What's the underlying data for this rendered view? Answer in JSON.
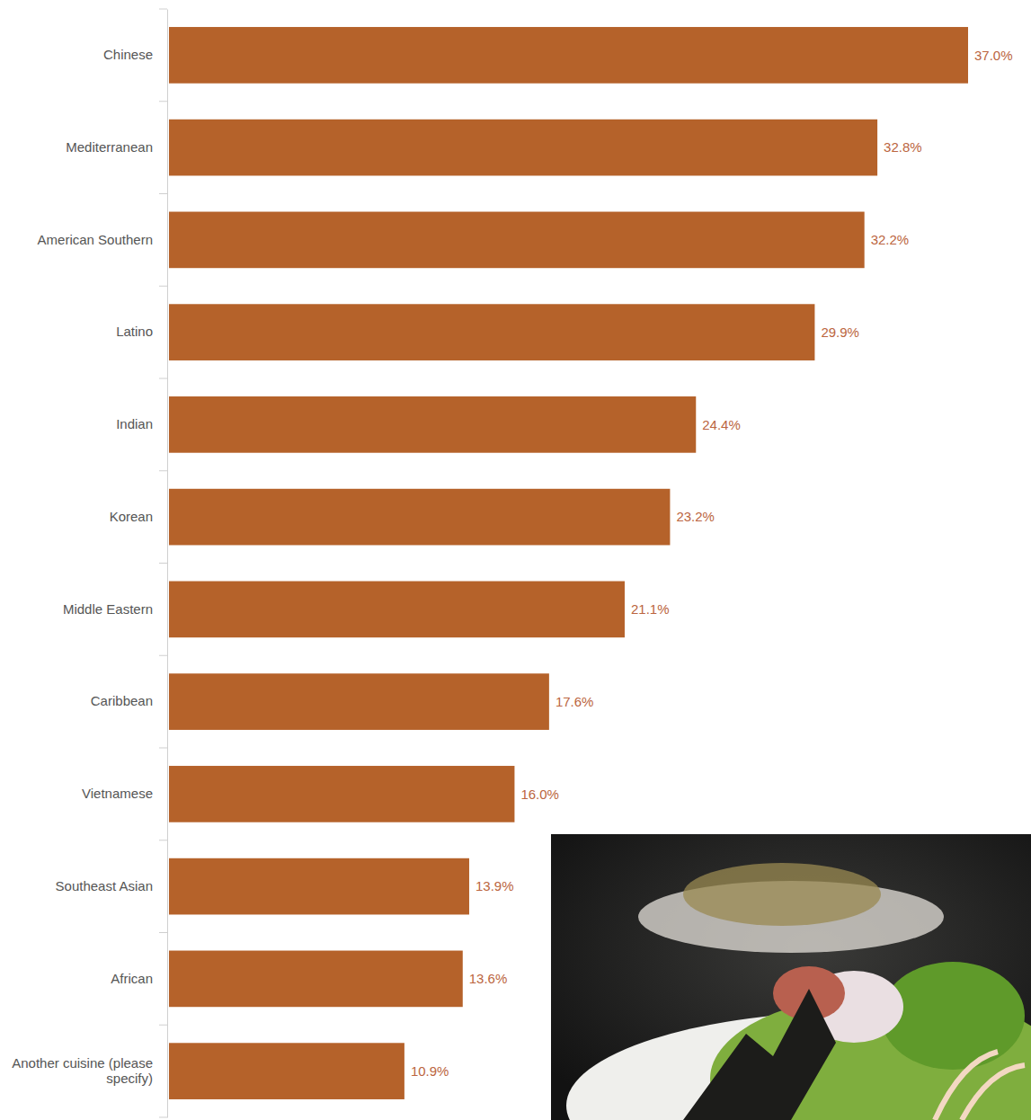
{
  "chart_data": {
    "type": "bar",
    "orientation": "horizontal",
    "categories": [
      "Chinese",
      "Mediterranean",
      "American Southern",
      "Latino",
      "Indian",
      "Korean",
      "Middle Eastern",
      "Caribbean",
      "Vietnamese",
      "Southeast Asian",
      "African",
      "Another cuisine (please specify)"
    ],
    "values": [
      37.0,
      32.8,
      32.2,
      29.9,
      24.4,
      23.2,
      21.1,
      17.6,
      16.0,
      13.9,
      13.6,
      10.9
    ],
    "value_labels": [
      "37.0%",
      "32.8%",
      "32.2%",
      "29.9%",
      "24.4%",
      "23.2%",
      "21.1%",
      "17.6%",
      "16.0%",
      "13.9%",
      "13.6%",
      "10.9%"
    ],
    "color": "#b5622a",
    "xlim": [
      0,
      37
    ],
    "data_labels": true,
    "tick_labels": "y",
    "grid": false
  }
}
